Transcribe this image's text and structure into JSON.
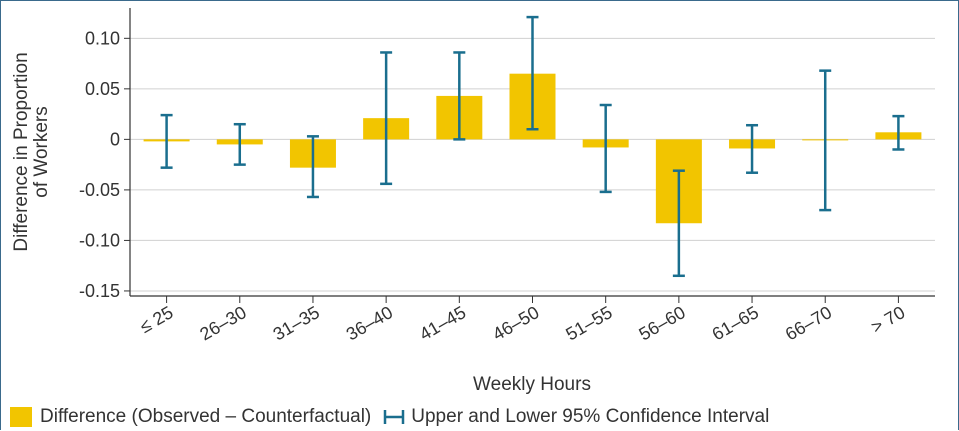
{
  "chart_data": {
    "type": "bar",
    "ylabel_line1": "Difference in Proportion",
    "ylabel_line2": "of Workers",
    "xlabel": "Weekly Hours",
    "categories": [
      "≤ 25",
      "26–30",
      "31–35",
      "36–40",
      "41–45",
      "46–50",
      "51–55",
      "56–60",
      "61–65",
      "66–70",
      "> 70"
    ],
    "series": [
      {
        "name": "Difference (Observed – Counterfactual)",
        "values": [
          -0.002,
          -0.005,
          -0.028,
          0.021,
          0.043,
          0.065,
          -0.008,
          -0.083,
          -0.009,
          -0.001,
          0.007
        ]
      }
    ],
    "ci": {
      "name": "Upper and Lower 95% Confidence Interval",
      "upper": [
        0.024,
        0.015,
        0.003,
        0.086,
        0.086,
        0.121,
        0.034,
        -0.031,
        0.014,
        0.068,
        0.023
      ],
      "lower": [
        -0.028,
        -0.025,
        -0.057,
        -0.044,
        0.0,
        0.01,
        -0.052,
        -0.135,
        -0.033,
        -0.07,
        -0.01
      ]
    },
    "yticks": [
      0.1,
      0.05,
      0,
      -0.05,
      -0.1,
      -0.15
    ],
    "ytick_labels": [
      "0.10",
      "0.05",
      "0",
      "-0.05",
      "-0.10",
      "-0.15"
    ],
    "ylim": [
      -0.155,
      0.13
    ],
    "grid": true,
    "legend_position": "bottom",
    "colors": {
      "bar": "#f2c500",
      "ci": "#1a6e8e",
      "grid": "#d0d0d0",
      "axis": "#333333",
      "text": "#333333"
    }
  }
}
